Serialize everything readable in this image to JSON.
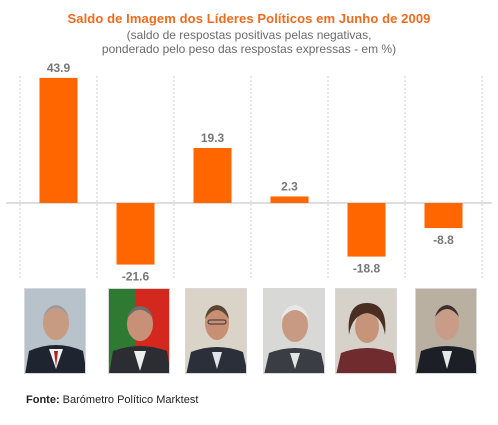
{
  "chart_data": {
    "type": "bar",
    "title": "Saldo de Imagem dos Líderes Políticos em Junho de 2009",
    "subtitle": "(saldo de respostas positivas pelas negativas,\nponderado pelo peso das respostas expressas - em %)",
    "values": [
      43.9,
      -21.6,
      19.3,
      2.3,
      -18.8,
      -8.8
    ],
    "value_labels": [
      "43.9",
      "-21.6",
      "19.3",
      "2.3",
      "-18.8",
      "-8.8"
    ],
    "ylim": [
      -30,
      50
    ],
    "bar_color": "#ff6600",
    "label_color": "#777777",
    "grid": "vertical-dashed"
  },
  "source": {
    "label": "Fonte:",
    "text": "Barómetro Político Marktest"
  },
  "photos": [
    "portrait-1",
    "portrait-2",
    "portrait-3",
    "portrait-4",
    "portrait-5",
    "portrait-6"
  ]
}
